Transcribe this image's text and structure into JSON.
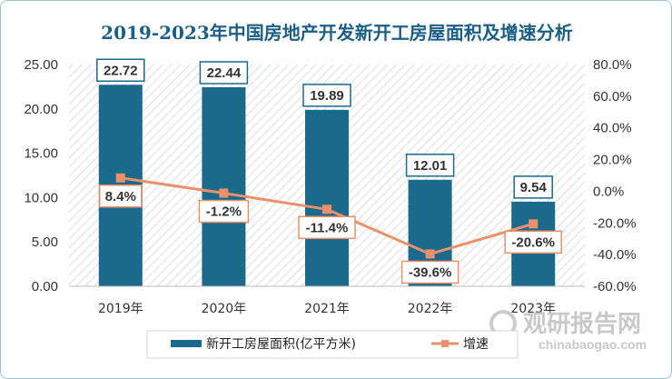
{
  "chart_data": {
    "type": "bar+line",
    "title": "2019-2023年中国房地产开发新开工房屋面积及增速分析",
    "categories": [
      "2019年",
      "2020年",
      "2021年",
      "2022年",
      "2023年"
    ],
    "bar_series": {
      "name": "新开工房屋面积(亿平方米)",
      "values": [
        22.72,
        22.44,
        19.89,
        12.01,
        9.54
      ],
      "labels": [
        "22.72",
        "22.44",
        "19.89",
        "12.01",
        "9.54"
      ]
    },
    "line_series": {
      "name": "增速",
      "values": [
        8.4,
        -1.2,
        -11.4,
        -39.6,
        -20.6
      ],
      "labels": [
        "8.4%",
        "-1.2%",
        "-11.4%",
        "-39.6%",
        "-20.6%"
      ]
    },
    "y_left": {
      "min": 0,
      "max": 25,
      "step": 5,
      "tick_labels": [
        "0.00",
        "5.00",
        "10.00",
        "15.00",
        "20.00",
        "25.00"
      ]
    },
    "y_right": {
      "min": -60,
      "max": 80,
      "step": 20,
      "tick_labels": [
        "-60.0%",
        "-40.0%",
        "-20.0%",
        "0.0%",
        "20.0%",
        "40.0%",
        "60.0%",
        "80.0%"
      ]
    },
    "colors": {
      "bar": "#1b6a8c",
      "line": "#e8916b",
      "title": "#1b5e86"
    },
    "legend": [
      "新开工房屋面积(亿平方米)",
      "增速"
    ],
    "legend_position": "bottom"
  },
  "watermark": {
    "main": "观研报告网",
    "sub": "chinabaogao.com"
  }
}
